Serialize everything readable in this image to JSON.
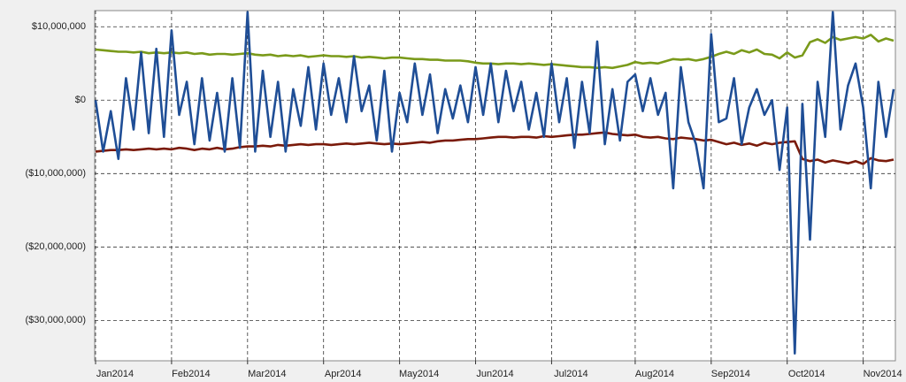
{
  "chart_data": {
    "type": "line",
    "categories": [
      "Jan2014",
      null,
      null,
      null,
      null,
      null,
      null,
      null,
      null,
      null,
      "Feb2014",
      null,
      null,
      null,
      null,
      null,
      null,
      null,
      null,
      null,
      "Mar2014",
      null,
      null,
      null,
      null,
      null,
      null,
      null,
      null,
      null,
      "Apr2014",
      null,
      null,
      null,
      null,
      null,
      null,
      null,
      null,
      null,
      "May2014",
      null,
      null,
      null,
      null,
      null,
      null,
      null,
      null,
      null,
      "Jun2014",
      null,
      null,
      null,
      null,
      null,
      null,
      null,
      null,
      null,
      "Jul2014",
      null,
      null,
      null,
      null,
      null,
      null,
      null,
      null,
      null,
      null,
      "Aug2014",
      null,
      null,
      null,
      null,
      null,
      null,
      null,
      null,
      null,
      "Sep2014",
      null,
      null,
      null,
      null,
      null,
      null,
      null,
      null,
      null,
      "Oct2014",
      null,
      null,
      null,
      null,
      null,
      null,
      null,
      null,
      null,
      "Nov2014",
      null,
      null,
      null,
      null
    ],
    "series": [
      {
        "color": "#7a9a1a",
        "values": [
          6900000,
          6800000,
          6700000,
          6600000,
          6600000,
          6500000,
          6600000,
          6400000,
          6500000,
          6400000,
          6500000,
          6400000,
          6500000,
          6300000,
          6400000,
          6200000,
          6300000,
          6300000,
          6200000,
          6300000,
          6400000,
          6200000,
          6100000,
          6200000,
          6000000,
          6100000,
          6000000,
          6100000,
          5900000,
          6000000,
          6100000,
          6000000,
          6000000,
          5900000,
          6000000,
          5800000,
          5900000,
          5800000,
          5700000,
          5800000,
          5800000,
          5700000,
          5600000,
          5600000,
          5500000,
          5500000,
          5400000,
          5400000,
          5400000,
          5300000,
          5100000,
          5000000,
          5000000,
          4900000,
          5000000,
          5000000,
          4900000,
          5000000,
          4900000,
          4800000,
          4900000,
          4800000,
          4700000,
          4600000,
          4500000,
          4500000,
          4400000,
          4500000,
          4400000,
          4600000,
          4800000,
          5200000,
          5000000,
          5100000,
          5000000,
          5300000,
          5600000,
          5500000,
          5600000,
          5400000,
          5600000,
          5900000,
          6300000,
          6600000,
          6300000,
          6800000,
          6500000,
          6900000,
          6300000,
          6200000,
          5700000,
          6500000,
          5800000,
          6100000,
          7900000,
          8300000,
          7800000,
          8600000,
          8200000,
          8400000,
          8600000,
          8400000,
          8900000,
          8000000,
          8400000,
          8100000
        ]
      },
      {
        "color": "#7a1a0a",
        "values": [
          -7000000,
          -6900000,
          -6800000,
          -6800000,
          -6700000,
          -6800000,
          -6700000,
          -6600000,
          -6700000,
          -6600000,
          -6700000,
          -6500000,
          -6600000,
          -6800000,
          -6600000,
          -6700000,
          -6500000,
          -6700000,
          -6600000,
          -6400000,
          -6300000,
          -6300000,
          -6200000,
          -6300000,
          -6100000,
          -6200000,
          -6100000,
          -6000000,
          -6100000,
          -6000000,
          -6000000,
          -6100000,
          -6000000,
          -5900000,
          -6000000,
          -5900000,
          -5800000,
          -5900000,
          -6000000,
          -5900000,
          -6000000,
          -5900000,
          -5800000,
          -5700000,
          -5800000,
          -5600000,
          -5500000,
          -5500000,
          -5400000,
          -5300000,
          -5300000,
          -5200000,
          -5100000,
          -5000000,
          -5000000,
          -5100000,
          -5000000,
          -5000000,
          -5100000,
          -4900000,
          -5000000,
          -4900000,
          -4800000,
          -4700000,
          -4700000,
          -4600000,
          -4500000,
          -4400000,
          -4600000,
          -4700000,
          -4800000,
          -4700000,
          -5000000,
          -5100000,
          -5000000,
          -5200000,
          -5300000,
          -5100000,
          -5200000,
          -5300000,
          -5500000,
          -5400000,
          -5700000,
          -6000000,
          -5800000,
          -6100000,
          -5900000,
          -6200000,
          -5800000,
          -6000000,
          -5800000,
          -5700000,
          -5600000,
          -8000000,
          -8300000,
          -8100000,
          -8500000,
          -8200000,
          -8400000,
          -8600000,
          -8300000,
          -8700000,
          -7900000,
          -8200000,
          -8300000,
          -8100000
        ]
      },
      {
        "color": "#1f4e96",
        "values": [
          0,
          -7000000,
          -1500000,
          -8000000,
          3000000,
          -4000000,
          6500000,
          -4500000,
          7000000,
          -5000000,
          9500000,
          -2000000,
          2500000,
          -6000000,
          3000000,
          -5500000,
          1000000,
          -7000000,
          3000000,
          -6500000,
          12000000,
          -7000000,
          4000000,
          -5000000,
          2500000,
          -7000000,
          1500000,
          -3500000,
          4500000,
          -4000000,
          5000000,
          -2000000,
          3000000,
          -3000000,
          6000000,
          -1500000,
          2000000,
          -5500000,
          4000000,
          -7000000,
          1000000,
          -3000000,
          5000000,
          -2000000,
          3500000,
          -4500000,
          1500000,
          -2500000,
          2000000,
          -3000000,
          4500000,
          -2000000,
          5000000,
          -3000000,
          4000000,
          -1500000,
          2500000,
          -4000000,
          1000000,
          -5000000,
          5000000,
          -3000000,
          3000000,
          -6500000,
          2500000,
          -4500000,
          8000000,
          -6000000,
          1500000,
          -5500000,
          2500000,
          3500000,
          -1500000,
          3000000,
          -2000000,
          1000000,
          -12000000,
          4500000,
          -3000000,
          -6000000,
          -12000000,
          9000000,
          -3000000,
          -2500000,
          3000000,
          -6000000,
          -1000000,
          1500000,
          -2000000,
          0,
          -9500000,
          -1000000,
          -34500000,
          -500000,
          -19000000,
          2500000,
          -5000000,
          12000000,
          -4000000,
          2000000,
          5000000,
          -1000000,
          -12000000,
          2500000,
          -5000000,
          1500000
        ]
      }
    ],
    "ylim": [
      -35500000,
      12200000
    ],
    "yticks": [
      {
        "value": -30000000,
        "label": "($30,000,000)"
      },
      {
        "value": -20000000,
        "label": "($20,000,000)"
      },
      {
        "value": -10000000,
        "label": "($10,000,000)"
      },
      {
        "value": 0,
        "label": "$0"
      },
      {
        "value": 10000000,
        "label": "$10,000,000"
      }
    ],
    "grid": true
  }
}
